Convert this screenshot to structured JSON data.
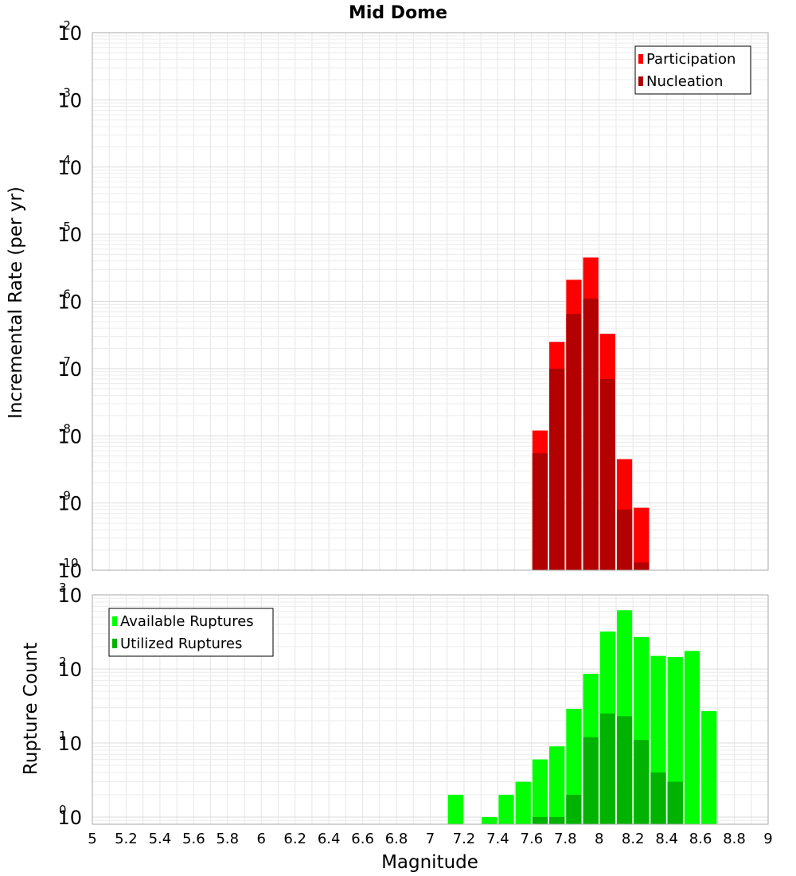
{
  "colors": {
    "participation": "#ff0000",
    "nucleation": "#b30000",
    "available": "#00ff00",
    "utilized": "#00b300",
    "grid": "#e6e6e6",
    "frame": "#aaaaaa"
  },
  "chart_data": [
    {
      "type": "bar",
      "scale": "log",
      "title": "Mid Dome",
      "xlabel": "",
      "ylabel": "Incremental Rate (per yr)",
      "xlim": [
        5,
        9
      ],
      "ylim": [
        1e-10,
        0.01
      ],
      "legend_position": "top-right",
      "y_ticks": [
        {
          "base": "10",
          "exp": "-10"
        },
        {
          "base": "10",
          "exp": "-9"
        },
        {
          "base": "10",
          "exp": "-8"
        },
        {
          "base": "10",
          "exp": "-7"
        },
        {
          "base": "10",
          "exp": "-6"
        },
        {
          "base": "10",
          "exp": "-5"
        },
        {
          "base": "10",
          "exp": "-4"
        },
        {
          "base": "10",
          "exp": "-3"
        },
        {
          "base": "10",
          "exp": "-2"
        }
      ],
      "bin_width": 0.1,
      "series": [
        {
          "name": "Participation",
          "color_key": "participation",
          "x": [
            7.65,
            7.75,
            7.85,
            7.95,
            8.05,
            8.15,
            8.25
          ],
          "values": [
            1.2e-08,
            2.5e-07,
            2.1e-06,
            4.5e-06,
            3.3e-07,
            4.5e-09,
            8.5e-10
          ]
        },
        {
          "name": "Nucleation",
          "color_key": "nucleation",
          "x": [
            7.65,
            7.75,
            7.85,
            7.95,
            8.05,
            8.15,
            8.25
          ],
          "values": [
            5.5e-09,
            1e-07,
            6.5e-07,
            1.1e-06,
            7e-08,
            8e-10,
            1.3e-10
          ]
        }
      ]
    },
    {
      "type": "bar",
      "scale": "log",
      "title": "",
      "xlabel": "Magnitude",
      "ylabel": "Rupture Count",
      "xlim": [
        5,
        9
      ],
      "ylim": [
        0.8,
        1000
      ],
      "legend_position": "top-left",
      "x_ticks": [
        "5",
        "5.2",
        "5.4",
        "5.6",
        "5.8",
        "6",
        "6.2",
        "6.4",
        "6.6",
        "6.8",
        "7",
        "7.2",
        "7.4",
        "7.6",
        "7.8",
        "8",
        "8.2",
        "8.4",
        "8.6",
        "8.8",
        "9"
      ],
      "y_ticks": [
        {
          "base": "10",
          "exp": "0"
        },
        {
          "base": "10",
          "exp": "1"
        },
        {
          "base": "10",
          "exp": "2"
        },
        {
          "base": "10",
          "exp": "3"
        }
      ],
      "bin_width": 0.1,
      "series": [
        {
          "name": "Available Ruptures",
          "color_key": "available",
          "x": [
            7.15,
            7.35,
            7.45,
            7.55,
            7.65,
            7.75,
            7.85,
            7.95,
            8.05,
            8.15,
            8.25,
            8.35,
            8.45,
            8.55,
            8.65
          ],
          "values": [
            2,
            1,
            2,
            3,
            6,
            9,
            29,
            86,
            320,
            620,
            270,
            150,
            145,
            175,
            27
          ]
        },
        {
          "name": "Utilized Ruptures",
          "color_key": "utilized",
          "x": [
            7.65,
            7.75,
            7.85,
            7.95,
            8.05,
            8.15,
            8.25,
            8.35,
            8.45
          ],
          "values": [
            1,
            1,
            2,
            12,
            25,
            23,
            11,
            4,
            3
          ]
        }
      ]
    }
  ]
}
